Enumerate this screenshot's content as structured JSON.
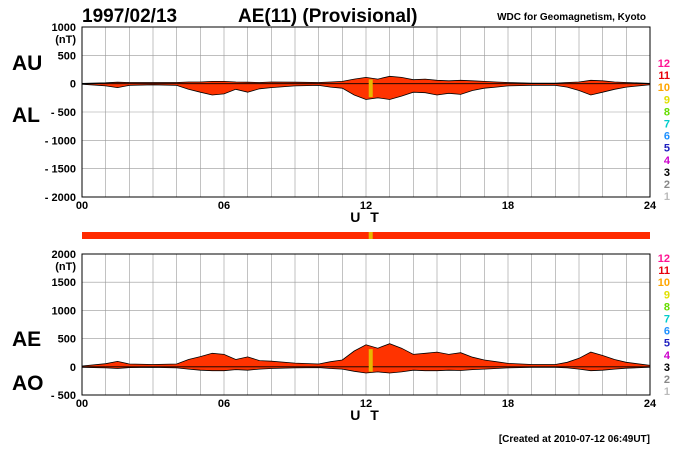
{
  "header": {
    "date": "1997/02/13",
    "title": "AE(11) (Provisional)",
    "source": "WDC for Geomagnetism, Kyoto"
  },
  "footer": {
    "created": "[Created at 2010-07-12 06:49UT]"
  },
  "colors": {
    "fill": "#ff3300",
    "outline": "#000000",
    "grid": "#999999",
    "highlight": "#e8b800",
    "bar": "#ff2a00"
  },
  "station_scale": {
    "labels": [
      "12",
      "11",
      "10",
      "9",
      "8",
      "7",
      "6",
      "5",
      "4",
      "3",
      "2",
      "1"
    ],
    "colors": [
      "#ff1493",
      "#e8000b",
      "#ffa500",
      "#e0e000",
      "#66dd00",
      "#00cccc",
      "#1e90ff",
      "#2020c0",
      "#cc00cc",
      "#000000",
      "#888888",
      "#bbbbbb"
    ]
  },
  "status_bar": {
    "highlight_time_h": 12.2
  },
  "chart_data": [
    {
      "type": "area",
      "xlabel": "U T",
      "unit": "(nT)",
      "series_labels": [
        "AU",
        "AL"
      ],
      "xlim": [
        0,
        24
      ],
      "ylim": [
        -2000,
        1000
      ],
      "xticks": [
        0,
        6,
        12,
        18,
        24
      ],
      "xtick_labels": [
        "00",
        "06",
        "12",
        "18",
        "24"
      ],
      "yticks": [
        1000,
        500,
        0,
        -500,
        -1000,
        -1500,
        -2000
      ],
      "ytick_labels": [
        "1000",
        "500",
        "0",
        "- 500",
        "- 1000",
        "- 1500",
        "- 2000"
      ],
      "grid": true,
      "highlight_x": 12.2,
      "x": [
        0,
        1,
        1.5,
        2,
        3,
        4,
        4.5,
        5,
        5.5,
        6,
        6.5,
        7,
        7.5,
        8,
        9,
        10,
        10.5,
        11,
        11.5,
        12,
        12.5,
        13,
        13.5,
        14,
        14.5,
        15,
        15.5,
        16,
        16.5,
        17,
        17.5,
        18,
        19,
        20,
        20.5,
        21,
        21.5,
        22,
        22.5,
        23,
        24
      ],
      "upper": [
        5,
        15,
        25,
        20,
        20,
        20,
        30,
        30,
        40,
        40,
        30,
        25,
        20,
        30,
        25,
        20,
        30,
        40,
        80,
        110,
        80,
        130,
        110,
        70,
        80,
        60,
        50,
        60,
        50,
        40,
        30,
        20,
        10,
        10,
        20,
        30,
        60,
        50,
        30,
        20,
        5
      ],
      "lower": [
        -10,
        -40,
        -70,
        -30,
        -20,
        -30,
        -100,
        -150,
        -200,
        -180,
        -100,
        -150,
        -90,
        -70,
        -40,
        -30,
        -60,
        -80,
        -200,
        -280,
        -250,
        -280,
        -220,
        -150,
        -160,
        -200,
        -170,
        -190,
        -120,
        -80,
        -60,
        -40,
        -30,
        -30,
        -60,
        -120,
        -200,
        -150,
        -100,
        -60,
        -20
      ]
    },
    {
      "type": "area",
      "xlabel": "U T",
      "unit": "(nT)",
      "series_labels": [
        "AE",
        "AO"
      ],
      "xlim": [
        0,
        24
      ],
      "ylim": [
        -500,
        2000
      ],
      "xticks": [
        0,
        6,
        12,
        18,
        24
      ],
      "xtick_labels": [
        "00",
        "06",
        "12",
        "18",
        "24"
      ],
      "yticks": [
        2000,
        1500,
        1000,
        500,
        0,
        -500
      ],
      "ytick_labels": [
        "2000",
        "1500",
        "1000",
        "500",
        "0",
        "- 500"
      ],
      "grid": true,
      "highlight_x": 12.2,
      "x": [
        0,
        1,
        1.5,
        2,
        3,
        4,
        4.5,
        5,
        5.5,
        6,
        6.5,
        7,
        7.5,
        8,
        9,
        10,
        10.5,
        11,
        11.5,
        12,
        12.5,
        13,
        13.5,
        14,
        14.5,
        15,
        15.5,
        16,
        16.5,
        17,
        17.5,
        18,
        19,
        20,
        20.5,
        21,
        21.5,
        22,
        22.5,
        23,
        24
      ],
      "upper": [
        15,
        55,
        95,
        50,
        40,
        50,
        130,
        180,
        240,
        220,
        130,
        175,
        110,
        100,
        65,
        50,
        90,
        120,
        280,
        390,
        330,
        410,
        330,
        220,
        240,
        260,
        220,
        250,
        170,
        120,
        90,
        60,
        40,
        40,
        80,
        150,
        260,
        200,
        130,
        80,
        25
      ],
      "lower": [
        -10,
        -20,
        -30,
        -15,
        -10,
        -20,
        -40,
        -60,
        -70,
        -70,
        -50,
        -60,
        -40,
        -30,
        -20,
        -15,
        -30,
        -40,
        -80,
        -110,
        -90,
        -110,
        -90,
        -60,
        -70,
        -70,
        -60,
        -65,
        -50,
        -40,
        -30,
        -20,
        -10,
        -10,
        -20,
        -40,
        -70,
        -60,
        -40,
        -25,
        -8
      ]
    }
  ]
}
